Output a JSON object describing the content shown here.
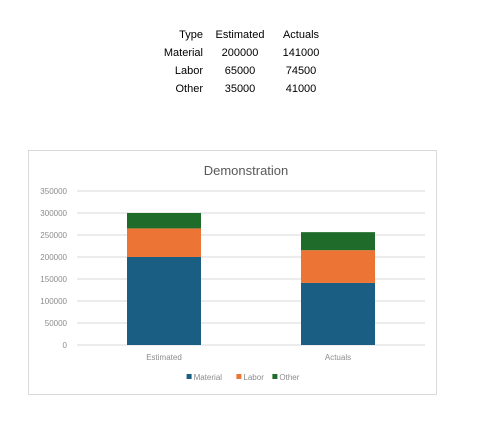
{
  "table": {
    "headers": [
      "Type",
      "Estimated",
      "Actuals"
    ],
    "rows": [
      [
        "Material",
        "200000",
        "141000"
      ],
      [
        "Labor",
        "65000",
        "74500"
      ],
      [
        "Other",
        "35000",
        "41000"
      ]
    ]
  },
  "chart_data": {
    "type": "bar",
    "stacked": true,
    "title": "Demonstration",
    "categories": [
      "Estimated",
      "Actuals"
    ],
    "series": [
      {
        "name": "Material",
        "values": [
          200000,
          141000
        ],
        "color": "#1b5e84"
      },
      {
        "name": "Labor",
        "values": [
          65000,
          74500
        ],
        "color": "#ec7535"
      },
      {
        "name": "Other",
        "values": [
          35000,
          41000
        ],
        "color": "#1f6b2a"
      }
    ],
    "ylim": [
      0,
      350000
    ],
    "yticks": [
      "0",
      "50000",
      "100000",
      "150000",
      "200000",
      "250000",
      "300000",
      "350000"
    ],
    "grid": true,
    "legend": "bottom"
  }
}
